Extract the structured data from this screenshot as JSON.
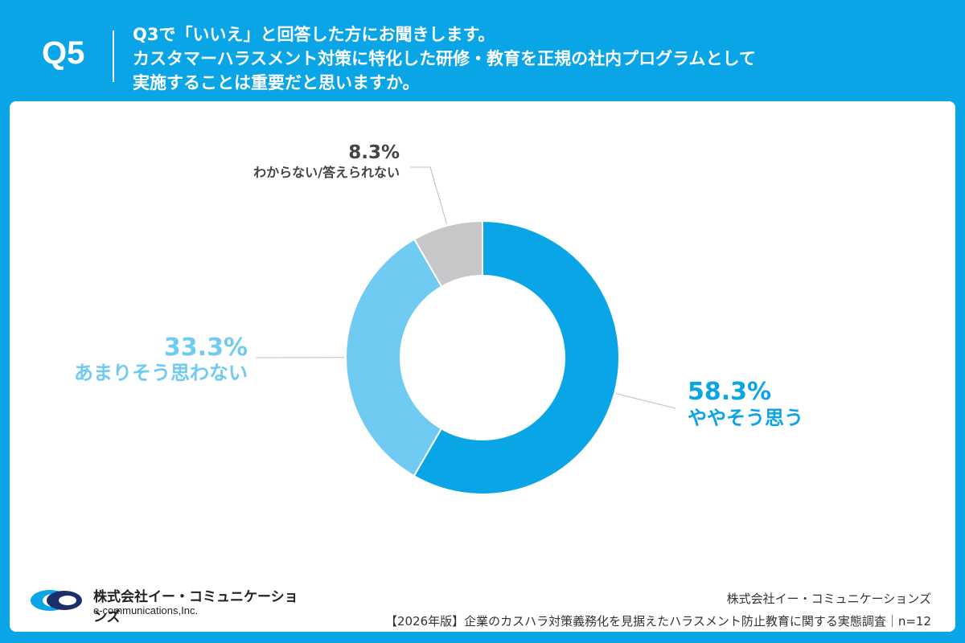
{
  "header": {
    "question_number": "Q5",
    "question_lines": [
      "Q3で「いいえ」と回答した方にお聞きします。",
      "カスタマーハラスメント対策に特化した研修・教育を正規の社内プログラムとして",
      "実施することは重要だと思いますか。"
    ]
  },
  "chart_data": {
    "type": "pie",
    "donut": true,
    "slices": [
      {
        "label": "ややそう思う",
        "value": 58.3,
        "value_label": "58.3%",
        "color": "#0AA5E6"
      },
      {
        "label": "あまりそう思わない",
        "value": 33.3,
        "value_label": "33.3%",
        "color": "#6FCBF2"
      },
      {
        "label": "わからない/答えられない",
        "value": 8.3,
        "value_label": "8.3%",
        "color": "#C7C7C9"
      }
    ],
    "start_angle": "12 o'clock",
    "direction": "clockwise"
  },
  "footer": {
    "logo_name": "株式会社イー・コミュニケーションズ",
    "logo_en": "e-communications,Inc.",
    "company": "株式会社イー・コミュニケーションズ",
    "survey_title": "【2026年版】企業のカスハラ対策義務化を見据えたハラスメント防止教育に関する実態調査｜n=12"
  },
  "colors": {
    "brand_blue": "#0AA5E6",
    "light_blue": "#6FCBF2",
    "gray": "#C7C7C9"
  }
}
